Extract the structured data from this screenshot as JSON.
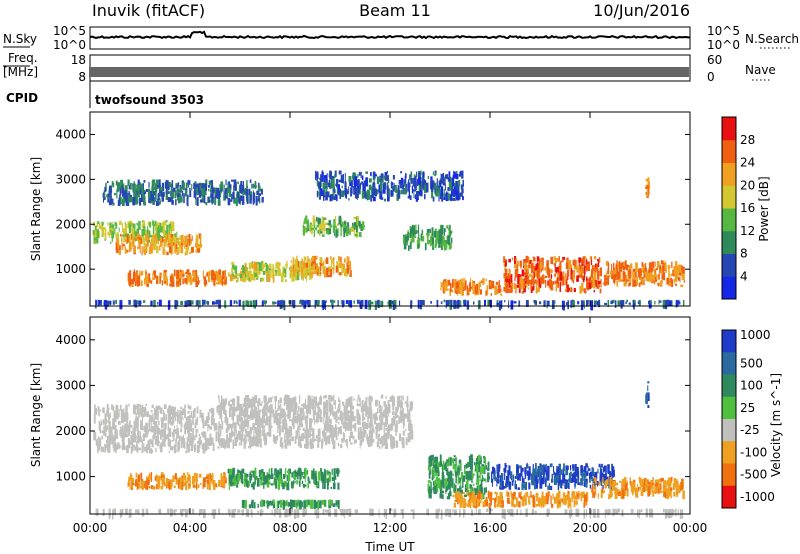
{
  "header": {
    "station": "Inuvik (fitACF)",
    "beam": "Beam 11",
    "date": "10/Jun/2016"
  },
  "strips": {
    "nsky_label": "N.Sky",
    "nsky_top": "10^5",
    "nsky_bottom": "10^0",
    "nsearch_label": "N.Search",
    "nsearch_top": "10^5",
    "nsearch_bottom": "10^0",
    "freq_label_1": "Freq.",
    "freq_label_2": "[MHz]",
    "freq_top": "18",
    "freq_bottom": "8",
    "nave_label": "Nave",
    "nave_top": "60",
    "nave_bottom": "0",
    "cpid_label": "CPID",
    "cpid_value": "twofsound 3503"
  },
  "colors": {
    "power_scale": [
      "#1428e6",
      "#2646b4",
      "#2f8a5a",
      "#56b840",
      "#d4c832",
      "#f0a020",
      "#f06010",
      "#e81010"
    ],
    "velocity_scale": [
      "#1e3cc8",
      "#2a6aa0",
      "#2e8a5e",
      "#50c040",
      "#c0c0bc",
      "#f0a020",
      "#f07010",
      "#e81010"
    ]
  },
  "chart_data": [
    {
      "type": "heatmap",
      "name_panel": "power",
      "xlabel": "",
      "ylabel": "Slant Range [km]",
      "xlim": [
        "00:00",
        "24:00"
      ],
      "ylim": [
        180,
        4500
      ],
      "y_ticks": [
        1000,
        2000,
        3000,
        4000
      ],
      "colorbar_label": "Power [dB]",
      "colorbar_ticks": [
        4,
        8,
        12,
        16,
        20,
        24,
        28
      ],
      "colorbar_range": [
        0,
        32
      ],
      "bands": [
        {
          "t0": 0.1,
          "t1": 3.5,
          "r0": 1550,
          "r1": 2100,
          "value": 16
        },
        {
          "t0": 1.0,
          "t1": 4.5,
          "r0": 1300,
          "r1": 1800,
          "value": 22
        },
        {
          "t0": 1.5,
          "t1": 5.5,
          "r0": 600,
          "r1": 1000,
          "value": 24
        },
        {
          "t0": 5.5,
          "t1": 9.0,
          "r0": 700,
          "r1": 1200,
          "value": 18
        },
        {
          "t0": 8.0,
          "t1": 10.5,
          "r0": 800,
          "r1": 1300,
          "value": 22
        },
        {
          "t0": 8.5,
          "t1": 11.0,
          "r0": 1700,
          "r1": 2200,
          "value": 14
        },
        {
          "t0": 12.5,
          "t1": 14.5,
          "r0": 1400,
          "r1": 2000,
          "value": 12
        },
        {
          "t0": 14.0,
          "t1": 16.5,
          "r0": 400,
          "r1": 800,
          "value": 24
        },
        {
          "t0": 16.5,
          "t1": 20.5,
          "r0": 450,
          "r1": 1300,
          "value": 26
        },
        {
          "t0": 20.5,
          "t1": 23.8,
          "r0": 600,
          "r1": 1200,
          "value": 24
        },
        {
          "t0": 0.2,
          "t1": 23.8,
          "r0": 200,
          "r1": 320,
          "value": 6
        },
        {
          "t0": 0.5,
          "t1": 7.0,
          "r0": 2400,
          "r1": 3000,
          "value": 8
        },
        {
          "t0": 9.0,
          "t1": 15.0,
          "r0": 2500,
          "r1": 3200,
          "value": 6
        },
        {
          "t0": 22.2,
          "t1": 22.4,
          "r0": 2500,
          "r1": 3100,
          "value": 24
        }
      ]
    },
    {
      "type": "heatmap",
      "name_panel": "velocity",
      "xlabel": "Time UT",
      "ylabel": "Slant Range [km]",
      "x_ticks": [
        "00:00",
        "04:00",
        "08:00",
        "12:00",
        "16:00",
        "20:00",
        "00:00"
      ],
      "ylim": [
        180,
        4500
      ],
      "y_ticks": [
        1000,
        2000,
        3000,
        4000
      ],
      "colorbar_label": "Velocity [m s^-1]",
      "colorbar_ticks": [
        "1000",
        "500",
        "100",
        "25",
        "-25",
        "-100",
        "-500",
        "-1000"
      ],
      "bands": [
        {
          "t0": 0.1,
          "t1": 5.0,
          "r0": 1500,
          "r1": 2600,
          "value": 25
        },
        {
          "t0": 5.0,
          "t1": 13.0,
          "r0": 1600,
          "r1": 2800,
          "value": 0
        },
        {
          "t0": 1.5,
          "t1": 5.5,
          "r0": 700,
          "r1": 1100,
          "value": -100
        },
        {
          "t0": 5.5,
          "t1": 10.0,
          "r0": 700,
          "r1": 1200,
          "value": 100
        },
        {
          "t0": 6.0,
          "t1": 10.0,
          "r0": 300,
          "r1": 500,
          "value": 100
        },
        {
          "t0": 13.5,
          "t1": 16.0,
          "r0": 500,
          "r1": 1500,
          "value": 100
        },
        {
          "t0": 16.0,
          "t1": 21.0,
          "r0": 700,
          "r1": 1300,
          "value": 500
        },
        {
          "t0": 14.5,
          "t1": 20.0,
          "r0": 300,
          "r1": 700,
          "value": -100
        },
        {
          "t0": 20.0,
          "t1": 23.8,
          "r0": 500,
          "r1": 1000,
          "value": -100
        },
        {
          "t0": 0.2,
          "t1": 23.8,
          "r0": 200,
          "r1": 300,
          "value": 0
        },
        {
          "t0": 22.2,
          "t1": 22.4,
          "r0": 2500,
          "r1": 3100,
          "value": 500
        }
      ]
    }
  ]
}
